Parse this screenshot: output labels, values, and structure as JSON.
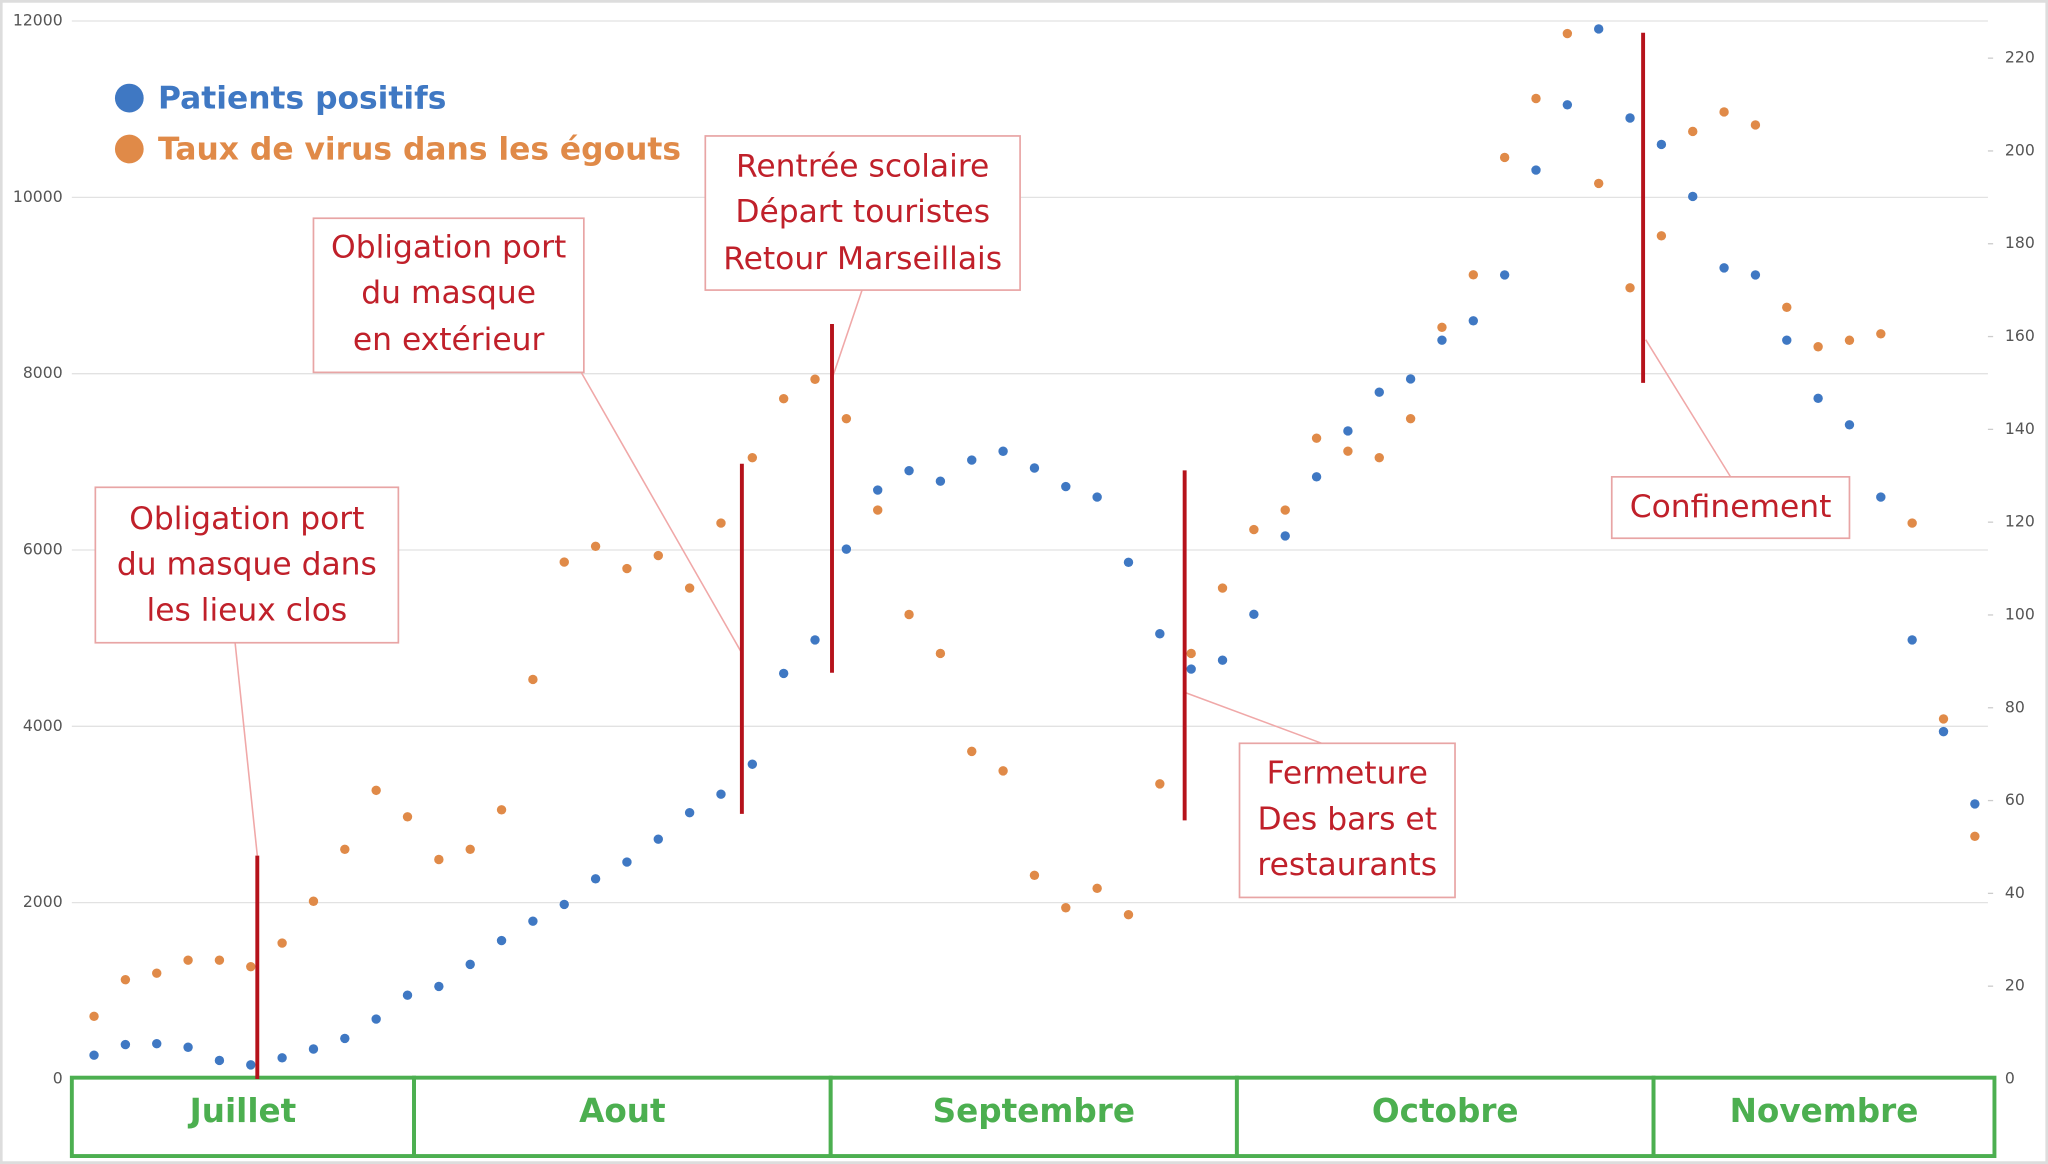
{
  "chart_data": {
    "type": "scatter",
    "ylim": [
      0,
      12000
    ],
    "yticks": [
      0,
      2000,
      4000,
      6000,
      8000,
      10000,
      12000
    ],
    "y2lim": [
      0,
      228
    ],
    "y2ticks": [
      0,
      20,
      40,
      60,
      80,
      100,
      120,
      140,
      160,
      180,
      200,
      220
    ],
    "grid": true,
    "legend": "top-left",
    "periods": [
      "Juillet",
      "Aout",
      "Septembre",
      "Octobre",
      "Novembre"
    ],
    "annotations": [
      {
        "lines": [
          "Obligation port",
          "du masque dans",
          "les lieux clos"
        ]
      },
      {
        "lines": [
          "Obligation port",
          "du masque",
          "en extérieur"
        ]
      },
      {
        "lines": [
          "Rentrée scolaire",
          "Départ touristes",
          "Retour Marseillais"
        ]
      },
      {
        "lines": [
          "Fermeture",
          "Des bars et",
          "restaurants"
        ]
      },
      {
        "lines": [
          "Confinement"
        ]
      }
    ],
    "series": [
      {
        "name": "Patients positifs",
        "color": "#3f78c3",
        "values": [
          270,
          390,
          400,
          360,
          210,
          160,
          240,
          340,
          460,
          680,
          950,
          1050,
          1300,
          1570,
          1790,
          1980,
          2270,
          2460,
          2720,
          3020,
          3230,
          3570,
          4600,
          4980,
          6010,
          6680,
          6900,
          6780,
          7020,
          7120,
          6930,
          6720,
          6600,
          5860,
          5050,
          4650,
          4750,
          5270,
          6160,
          6830,
          7350,
          7790,
          7940,
          8380,
          8600,
          9120,
          10310,
          11050,
          11910,
          10900,
          10600,
          10010,
          9200,
          9120,
          8380,
          7720,
          7420,
          6600,
          4980,
          3940,
          3120
        ]
      },
      {
        "name": "Taux de virus dans les égouts",
        "color": "#e08a48",
        "axis": "y2",
        "values": [
          13.5,
          21.4,
          22.8,
          25.6,
          25.6,
          24.2,
          29.3,
          38.3,
          49.5,
          62.2,
          56.5,
          47.3,
          49.5,
          58.0,
          86.1,
          111.4,
          114.8,
          110.0,
          112.8,
          105.8,
          119.8,
          133.9,
          146.6,
          150.8,
          142.3,
          122.6,
          100.1,
          91.7,
          70.6,
          66.4,
          43.9,
          36.9,
          41.1,
          35.4,
          63.6,
          91.7,
          105.8,
          118.4,
          122.6,
          138.1,
          135.3,
          133.9,
          142.3,
          162.0,
          173.3,
          198.6,
          211.3,
          225.3,
          193.0,
          170.5,
          181.7,
          204.2,
          208.4,
          205.6,
          166.3,
          157.8,
          159.2,
          160.6,
          119.8,
          77.6,
          52.3
        ]
      }
    ]
  }
}
